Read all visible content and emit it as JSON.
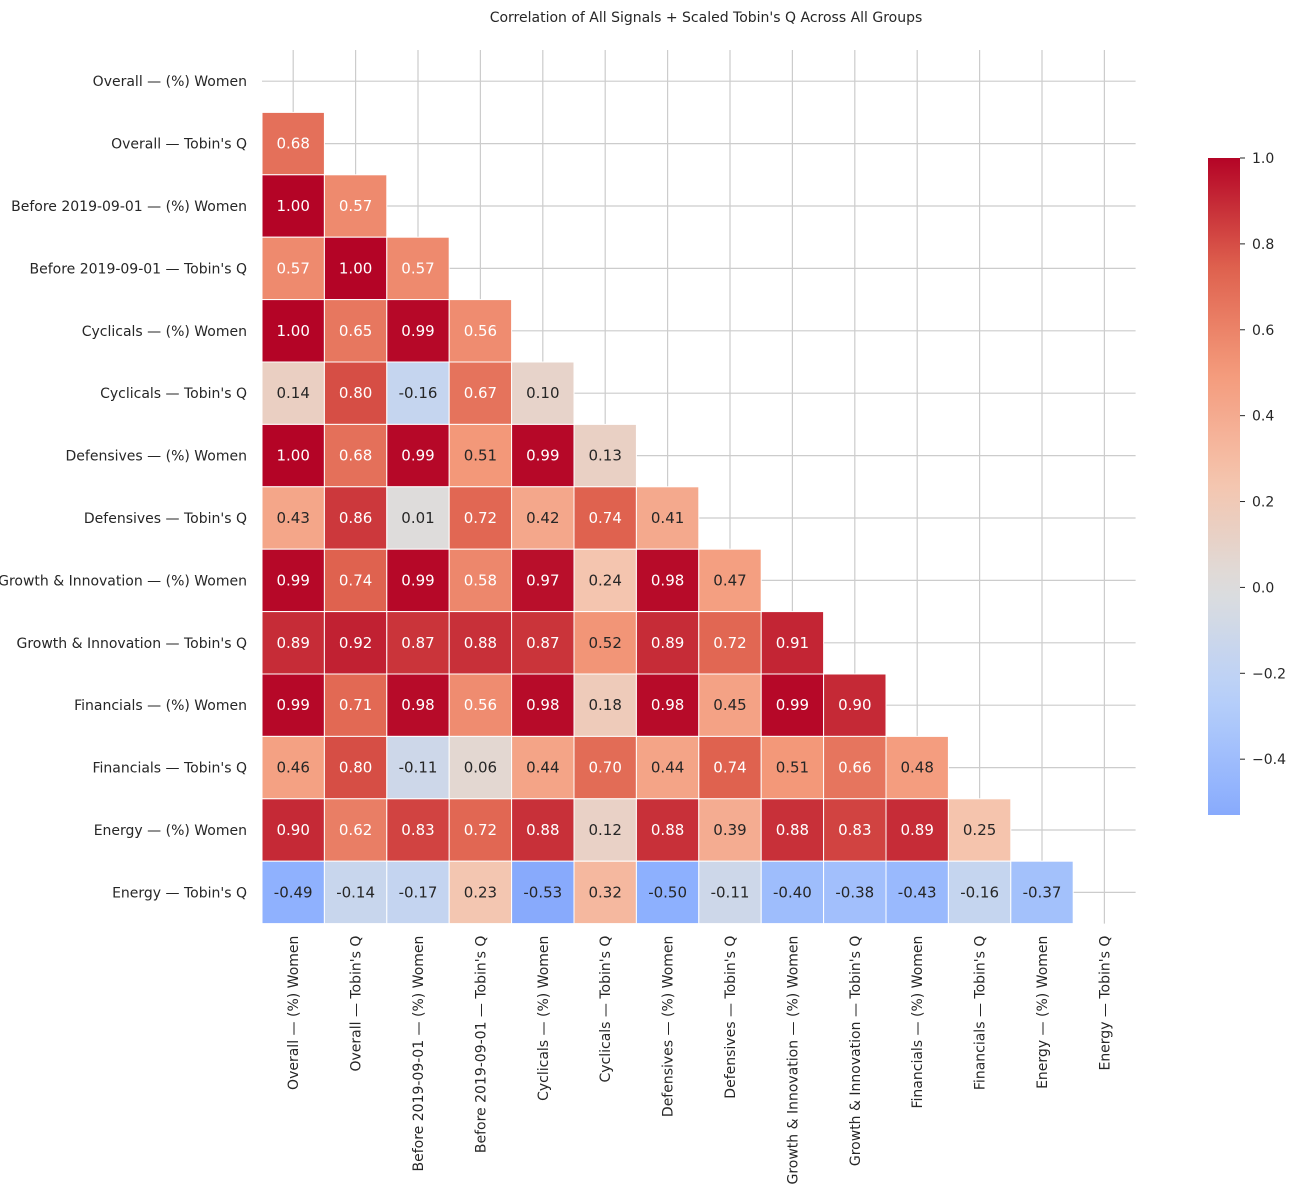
{
  "chart_data": {
    "type": "heatmap",
    "title": "Correlation of All Signals + Scaled Tobin's Q Across All Groups",
    "labels": [
      "Overall — (%) Women",
      "Overall — Tobin's Q",
      "Before 2019-09-01 — (%) Women",
      "Before 2019-09-01 — Tobin's Q",
      "Cyclicals — (%) Women",
      "Cyclicals — Tobin's Q",
      "Defensives — (%) Women",
      "Defensives — Tobin's Q",
      "Growth & Innovation — (%) Women",
      "Growth & Innovation — Tobin's Q",
      "Financials — (%) Women",
      "Financials — Tobin's Q",
      "Energy — (%) Women",
      "Energy — Tobin's Q"
    ],
    "mask": "upper-triangle-including-diagonal",
    "values": [
      [],
      [
        0.68
      ],
      [
        1.0,
        0.57
      ],
      [
        0.57,
        1.0,
        0.57
      ],
      [
        1.0,
        0.65,
        0.99,
        0.56
      ],
      [
        0.14,
        0.8,
        -0.16,
        0.67,
        0.1
      ],
      [
        1.0,
        0.68,
        0.99,
        0.51,
        0.99,
        0.13
      ],
      [
        0.43,
        0.86,
        0.01,
        0.72,
        0.42,
        0.74,
        0.41
      ],
      [
        0.99,
        0.74,
        0.99,
        0.58,
        0.97,
        0.24,
        0.98,
        0.47
      ],
      [
        0.89,
        0.92,
        0.87,
        0.88,
        0.87,
        0.52,
        0.89,
        0.72,
        0.91
      ],
      [
        0.99,
        0.71,
        0.98,
        0.56,
        0.98,
        0.18,
        0.98,
        0.45,
        0.99,
        0.9
      ],
      [
        0.46,
        0.8,
        -0.11,
        0.06,
        0.44,
        0.7,
        0.44,
        0.74,
        0.51,
        0.66,
        0.48
      ],
      [
        0.9,
        0.62,
        0.83,
        0.72,
        0.88,
        0.12,
        0.88,
        0.39,
        0.88,
        0.83,
        0.89,
        0.25
      ],
      [
        -0.49,
        -0.14,
        -0.17,
        0.23,
        -0.53,
        0.32,
        -0.5,
        -0.11,
        -0.4,
        -0.38,
        -0.43,
        -0.16,
        -0.37
      ]
    ],
    "value_format": "2 decimals",
    "colormap": "coolwarm",
    "center": 0.0,
    "vmin": -0.53,
    "vmax": 1.0,
    "colorbar": {
      "ticks": [
        1.0,
        0.8,
        0.6,
        0.4,
        0.2,
        0.0,
        -0.2,
        -0.4
      ],
      "tick_labels": [
        "1.0",
        "0.8",
        "0.6",
        "0.4",
        "0.2",
        "0.0",
        "−0.2",
        "−0.4"
      ]
    }
  }
}
